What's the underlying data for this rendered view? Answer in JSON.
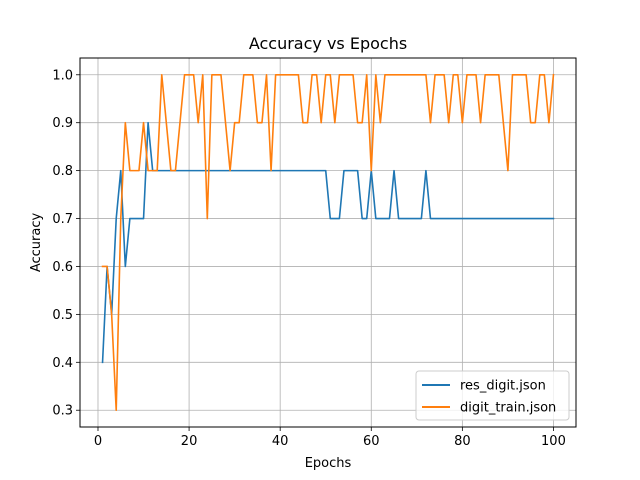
{
  "chart_data": {
    "type": "line",
    "title": "Accuracy vs Epochs",
    "xlabel": "Epochs",
    "ylabel": "Accuracy",
    "xlim": [
      -3.95,
      104.95
    ],
    "ylim": [
      0.265,
      1.035
    ],
    "xticks": [
      0,
      20,
      40,
      60,
      80,
      100
    ],
    "yticks": [
      0.3,
      0.4,
      0.5,
      0.6,
      0.7,
      0.8,
      0.9,
      1.0
    ],
    "ytick_labels": [
      "0.3",
      "0.4",
      "0.5",
      "0.6",
      "0.7",
      "0.8",
      "0.9",
      "1.0"
    ],
    "grid": true,
    "legend_position": "bottom-right",
    "series": [
      {
        "name": "res_digit.json",
        "color": "#1f77b4",
        "x": [
          1,
          2,
          3,
          4,
          5,
          6,
          7,
          8,
          9,
          10,
          11,
          12,
          13,
          14,
          15,
          16,
          17,
          18,
          19,
          20,
          21,
          22,
          23,
          24,
          25,
          26,
          27,
          28,
          29,
          30,
          31,
          32,
          33,
          34,
          35,
          36,
          37,
          38,
          39,
          40,
          41,
          42,
          43,
          44,
          45,
          46,
          47,
          48,
          49,
          50,
          51,
          52,
          53,
          54,
          55,
          56,
          57,
          58,
          59,
          60,
          61,
          62,
          63,
          64,
          65,
          66,
          67,
          68,
          69,
          70,
          71,
          72,
          73,
          74,
          75,
          76,
          77,
          78,
          79,
          80,
          81,
          82,
          83,
          84,
          85,
          86,
          87,
          88,
          89,
          90,
          91,
          92,
          93,
          94,
          95,
          96,
          97,
          98,
          99,
          100
        ],
        "y": [
          0.4,
          0.6,
          0.5,
          0.7,
          0.8,
          0.6,
          0.7,
          0.7,
          0.7,
          0.7,
          0.9,
          0.8,
          0.8,
          0.8,
          0.8,
          0.8,
          0.8,
          0.8,
          0.8,
          0.8,
          0.8,
          0.8,
          0.8,
          0.8,
          0.8,
          0.8,
          0.8,
          0.8,
          0.8,
          0.8,
          0.8,
          0.8,
          0.8,
          0.8,
          0.8,
          0.8,
          0.8,
          0.8,
          0.8,
          0.8,
          0.8,
          0.8,
          0.8,
          0.8,
          0.8,
          0.8,
          0.8,
          0.8,
          0.8,
          0.8,
          0.7,
          0.7,
          0.7,
          0.8,
          0.8,
          0.8,
          0.8,
          0.7,
          0.7,
          0.8,
          0.7,
          0.7,
          0.7,
          0.7,
          0.8,
          0.7,
          0.7,
          0.7,
          0.7,
          0.7,
          0.7,
          0.8,
          0.7,
          0.7,
          0.7,
          0.7,
          0.7,
          0.7,
          0.7,
          0.7,
          0.7,
          0.7,
          0.7,
          0.7,
          0.7,
          0.7,
          0.7,
          0.7,
          0.7,
          0.7,
          0.7,
          0.7,
          0.7,
          0.7,
          0.7,
          0.7,
          0.7,
          0.7,
          0.7,
          0.7
        ]
      },
      {
        "name": "digit_train.json",
        "color": "#ff7f0e",
        "x": [
          1,
          2,
          3,
          4,
          5,
          6,
          7,
          8,
          9,
          10,
          11,
          12,
          13,
          14,
          15,
          16,
          17,
          18,
          19,
          20,
          21,
          22,
          23,
          24,
          25,
          26,
          27,
          28,
          29,
          30,
          31,
          32,
          33,
          34,
          35,
          36,
          37,
          38,
          39,
          40,
          41,
          42,
          43,
          44,
          45,
          46,
          47,
          48,
          49,
          50,
          51,
          52,
          53,
          54,
          55,
          56,
          57,
          58,
          59,
          60,
          61,
          62,
          63,
          64,
          65,
          66,
          67,
          68,
          69,
          70,
          71,
          72,
          73,
          74,
          75,
          76,
          77,
          78,
          79,
          80,
          81,
          82,
          83,
          84,
          85,
          86,
          87,
          88,
          89,
          90,
          91,
          92,
          93,
          94,
          95,
          96,
          97,
          98,
          99,
          100
        ],
        "y": [
          0.6,
          0.6,
          0.5,
          0.3,
          0.7,
          0.9,
          0.8,
          0.8,
          0.8,
          0.9,
          0.8,
          0.8,
          0.8,
          1.0,
          0.9,
          0.8,
          0.8,
          0.9,
          1.0,
          1.0,
          1.0,
          0.9,
          1.0,
          0.7,
          1.0,
          1.0,
          1.0,
          0.9,
          0.8,
          0.9,
          0.9,
          1.0,
          1.0,
          1.0,
          0.9,
          0.9,
          1.0,
          0.8,
          1.0,
          1.0,
          1.0,
          1.0,
          1.0,
          1.0,
          0.9,
          0.9,
          1.0,
          1.0,
          0.9,
          1.0,
          1.0,
          0.9,
          1.0,
          1.0,
          1.0,
          1.0,
          0.9,
          0.9,
          1.0,
          0.8,
          1.0,
          0.9,
          1.0,
          1.0,
          1.0,
          1.0,
          1.0,
          1.0,
          1.0,
          1.0,
          1.0,
          1.0,
          0.9,
          1.0,
          1.0,
          1.0,
          0.9,
          1.0,
          1.0,
          0.9,
          1.0,
          1.0,
          1.0,
          0.9,
          1.0,
          1.0,
          1.0,
          1.0,
          0.9,
          0.8,
          1.0,
          1.0,
          1.0,
          1.0,
          0.9,
          0.9,
          1.0,
          1.0,
          0.9,
          1.0
        ]
      }
    ]
  }
}
